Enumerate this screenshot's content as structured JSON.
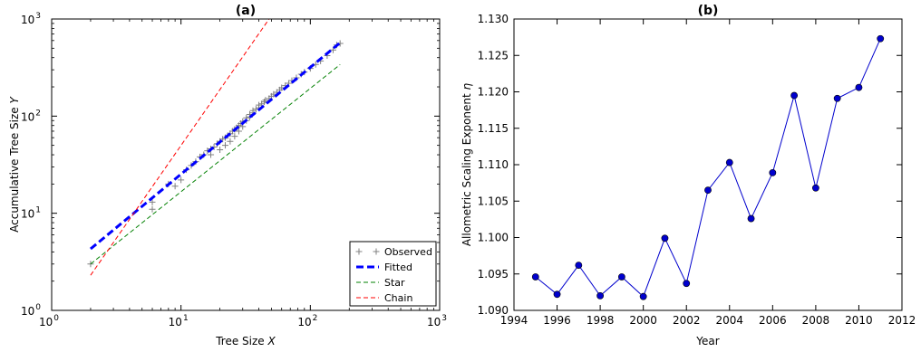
{
  "chart_data": [
    {
      "id": "a",
      "type": "scatter",
      "title": "(a)",
      "xlabel": "Tree Size",
      "xlabel_var": "X",
      "ylabel": "Accumulative Tree Size",
      "ylabel_var": "Y",
      "xscale": "log",
      "yscale": "log",
      "xlim": [
        1,
        1000
      ],
      "ylim": [
        1,
        1000
      ],
      "x_ticks": [
        {
          "base": "10",
          "exp": "0"
        },
        {
          "base": "10",
          "exp": "1"
        },
        {
          "base": "10",
          "exp": "2"
        },
        {
          "base": "10",
          "exp": "3"
        }
      ],
      "y_ticks": [
        {
          "base": "10",
          "exp": "0"
        },
        {
          "base": "10",
          "exp": "1"
        },
        {
          "base": "10",
          "exp": "2"
        },
        {
          "base": "10",
          "exp": "3"
        }
      ],
      "legend_position": "lower-right",
      "series": [
        {
          "name": "Observed",
          "style": "marker",
          "marker": "+",
          "color": "#808080",
          "points": [
            [
              2,
              3
            ],
            [
              6,
              11
            ],
            [
              6,
              13
            ],
            [
              8,
              20
            ],
            [
              9,
              19
            ],
            [
              10,
              22
            ],
            [
              11,
              28
            ],
            [
              12,
              31
            ],
            [
              13,
              34
            ],
            [
              14,
              38
            ],
            [
              15,
              40
            ],
            [
              16,
              44
            ],
            [
              17,
              46
            ],
            [
              17,
              40
            ],
            [
              18,
              48
            ],
            [
              19,
              52
            ],
            [
              20,
              45
            ],
            [
              20,
              55
            ],
            [
              21,
              58
            ],
            [
              22,
              50
            ],
            [
              22,
              60
            ],
            [
              23,
              63
            ],
            [
              24,
              55
            ],
            [
              24,
              66
            ],
            [
              25,
              70
            ],
            [
              26,
              62
            ],
            [
              26,
              73
            ],
            [
              27,
              76
            ],
            [
              28,
              70
            ],
            [
              28,
              80
            ],
            [
              29,
              84
            ],
            [
              30,
              78
            ],
            [
              30,
              88
            ],
            [
              32,
              90
            ],
            [
              32,
              96
            ],
            [
              34,
              98
            ],
            [
              34,
              104
            ],
            [
              36,
              108
            ],
            [
              36,
              114
            ],
            [
              38,
              118
            ],
            [
              40,
              122
            ],
            [
              40,
              130
            ],
            [
              42,
              134
            ],
            [
              44,
              140
            ],
            [
              45,
              146
            ],
            [
              48,
              152
            ],
            [
              50,
              160
            ],
            [
              52,
              168
            ],
            [
              55,
              176
            ],
            [
              58,
              186
            ],
            [
              60,
              196
            ],
            [
              64,
              206
            ],
            [
              68,
              218
            ],
            [
              72,
              232
            ],
            [
              78,
              248
            ],
            [
              85,
              270
            ],
            [
              90,
              284
            ],
            [
              100,
              310
            ],
            [
              110,
              340
            ],
            [
              120,
              370
            ],
            [
              135,
              420
            ],
            [
              150,
              480
            ],
            [
              160,
              540
            ],
            [
              170,
              560
            ]
          ]
        },
        {
          "name": "Fitted",
          "style": "dash-thick",
          "color": "#0000ff",
          "points": [
            [
              2,
              4.3
            ],
            [
              170,
              570
            ]
          ]
        },
        {
          "name": "Star",
          "style": "dash",
          "color": "#008000",
          "points": [
            [
              2,
              3
            ],
            [
              170,
              340
            ]
          ]
        },
        {
          "name": "Chain",
          "style": "dash",
          "color": "#ff0000",
          "points": [
            [
              2,
              2.3
            ],
            [
              48,
              1000
            ]
          ]
        }
      ]
    },
    {
      "id": "b",
      "type": "line",
      "title": "(b)",
      "xlabel": "Year",
      "ylabel": "Allometric Scaling Exponent",
      "ylabel_var": "η",
      "xlim": [
        1994,
        2012
      ],
      "ylim": [
        1.09,
        1.13
      ],
      "x_ticks": [
        "1994",
        "1996",
        "1998",
        "2000",
        "2002",
        "2004",
        "2006",
        "2008",
        "2010",
        "2012"
      ],
      "y_ticks": [
        "1.090",
        "1.095",
        "1.100",
        "1.105",
        "1.110",
        "1.115",
        "1.120",
        "1.125",
        "1.130"
      ],
      "color": "#0000cd",
      "x": [
        1995,
        1996,
        1997,
        1998,
        1999,
        2000,
        2001,
        2002,
        2003,
        2004,
        2005,
        2006,
        2007,
        2008,
        2009,
        2010,
        2011
      ],
      "y": [
        1.0946,
        1.0922,
        1.0962,
        1.092,
        1.0946,
        1.0919,
        1.0999,
        1.0937,
        1.1065,
        1.1103,
        1.1026,
        1.1089,
        1.1195,
        1.1068,
        1.1191,
        1.1206,
        1.1273
      ]
    }
  ]
}
